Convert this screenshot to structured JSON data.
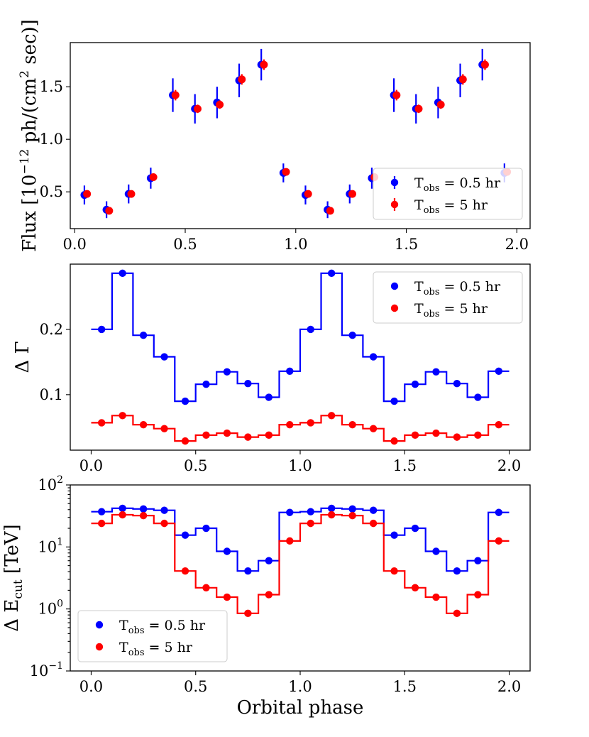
{
  "figure": {
    "xlabel": "Orbital phase",
    "colors": {
      "blue": "#0000ff",
      "red": "#ff0000"
    }
  },
  "chart_data": [
    {
      "type": "scatter",
      "ylabel": "Flux [10^{-12} ph/(cm^2 sec)]",
      "ylabel_parts": {
        "main": "Flux [10",
        "exp1": "−12",
        "mid": " ph/(cm",
        "exp2": "2",
        "end": " sec)]"
      },
      "xlim": [
        -0.02,
        2.06
      ],
      "ylim": [
        0.15,
        1.92
      ],
      "x_ticks": [
        0.0,
        0.5,
        1.0,
        1.5,
        2.0
      ],
      "x_tick_labels": [
        "0.0",
        "0.5",
        "1.0",
        "1.5",
        "2.0"
      ],
      "y_ticks": [
        0.5,
        1.0,
        1.5
      ],
      "y_tick_labels": [
        "0.5",
        "1.0",
        "1.5"
      ],
      "legend": {
        "location": "lower-right",
        "entries": [
          "T_obs = 0.5 hr",
          "T_obs = 5 hr"
        ]
      },
      "series": [
        {
          "name": "T_obs = 0.5 hr",
          "color": "#0000ff",
          "offset": -0.006,
          "x": [
            0.05,
            0.15,
            0.25,
            0.35,
            0.45,
            0.55,
            0.65,
            0.75,
            0.85,
            0.95,
            1.05,
            1.15,
            1.25,
            1.35,
            1.45,
            1.55,
            1.65,
            1.75,
            1.85,
            1.95
          ],
          "y": [
            0.47,
            0.33,
            0.48,
            0.63,
            1.42,
            1.29,
            1.35,
            1.56,
            1.71,
            0.68,
            0.47,
            0.33,
            0.48,
            0.63,
            1.42,
            1.29,
            1.35,
            1.56,
            1.71,
            0.68
          ],
          "yerr": [
            0.09,
            0.08,
            0.09,
            0.1,
            0.16,
            0.14,
            0.15,
            0.16,
            0.15,
            0.09,
            0.09,
            0.08,
            0.09,
            0.1,
            0.16,
            0.14,
            0.15,
            0.16,
            0.15,
            0.09
          ]
        },
        {
          "name": "T_obs = 5 hr",
          "color": "#ff0000",
          "offset": 0.006,
          "x": [
            0.05,
            0.15,
            0.25,
            0.35,
            0.45,
            0.55,
            0.65,
            0.75,
            0.85,
            0.95,
            1.05,
            1.15,
            1.25,
            1.35,
            1.45,
            1.55,
            1.65,
            1.75,
            1.85,
            1.95
          ],
          "y": [
            0.48,
            0.32,
            0.48,
            0.64,
            1.42,
            1.29,
            1.33,
            1.57,
            1.71,
            0.69,
            0.48,
            0.32,
            0.48,
            0.64,
            1.42,
            1.29,
            1.33,
            1.57,
            1.71,
            0.69
          ],
          "yerr": [
            0.03,
            0.03,
            0.03,
            0.03,
            0.05,
            0.04,
            0.04,
            0.05,
            0.05,
            0.03,
            0.03,
            0.03,
            0.03,
            0.03,
            0.05,
            0.04,
            0.04,
            0.05,
            0.05,
            0.03
          ]
        }
      ]
    },
    {
      "type": "line",
      "ylabel": "Δ Γ",
      "xlim": [
        -0.1,
        2.1
      ],
      "ylim": [
        0.015,
        0.3
      ],
      "x_ticks": [
        0.0,
        0.5,
        1.0,
        1.5,
        2.0
      ],
      "x_tick_labels": [
        "0.0",
        "0.5",
        "1.0",
        "1.5",
        "2.0"
      ],
      "y_ticks": [
        0.1,
        0.2
      ],
      "y_tick_labels": [
        "0.1",
        "0.2"
      ],
      "legend": {
        "location": "upper-right",
        "entries": [
          "T_obs = 0.5 hr",
          "T_obs = 5 hr"
        ]
      },
      "series": [
        {
          "name": "T_obs = 0.5 hr",
          "color": "#0000ff",
          "x": [
            0.05,
            0.15,
            0.25,
            0.35,
            0.45,
            0.55,
            0.65,
            0.75,
            0.85,
            0.95,
            1.05,
            1.15,
            1.25,
            1.35,
            1.45,
            1.55,
            1.65,
            1.75,
            1.85,
            1.95
          ],
          "y": [
            0.2,
            0.286,
            0.191,
            0.158,
            0.09,
            0.116,
            0.135,
            0.117,
            0.096,
            0.136,
            0.2,
            0.286,
            0.191,
            0.158,
            0.09,
            0.116,
            0.135,
            0.117,
            0.096,
            0.136
          ]
        },
        {
          "name": "T_obs = 5 hr",
          "color": "#ff0000",
          "x": [
            0.05,
            0.15,
            0.25,
            0.35,
            0.45,
            0.55,
            0.65,
            0.75,
            0.85,
            0.95,
            1.05,
            1.15,
            1.25,
            1.35,
            1.45,
            1.55,
            1.65,
            1.75,
            1.85,
            1.95
          ],
          "y": [
            0.057,
            0.068,
            0.054,
            0.048,
            0.029,
            0.038,
            0.041,
            0.035,
            0.038,
            0.054,
            0.057,
            0.068,
            0.054,
            0.048,
            0.029,
            0.038,
            0.041,
            0.035,
            0.038,
            0.054
          ]
        }
      ]
    },
    {
      "type": "line",
      "yscale": "log",
      "ylabel": "Δ E_cut [TeV]",
      "xlim": [
        -0.1,
        2.1
      ],
      "ylim": [
        0.1,
        100
      ],
      "x_ticks": [
        0.0,
        0.5,
        1.0,
        1.5,
        2.0
      ],
      "x_tick_labels": [
        "0.0",
        "0.5",
        "1.0",
        "1.5",
        "2.0"
      ],
      "y_ticks": [
        0.1,
        1,
        10,
        100
      ],
      "y_tick_labels": [
        [
          "10",
          "−1"
        ],
        [
          "10",
          "0"
        ],
        [
          "10",
          "1"
        ],
        [
          "10",
          "2"
        ]
      ],
      "legend": {
        "location": "lower-left",
        "entries": [
          "T_obs = 0.5 hr",
          "T_obs = 5 hr"
        ]
      },
      "series": [
        {
          "name": "T_obs = 0.5 hr",
          "color": "#0000ff",
          "x": [
            0.05,
            0.15,
            0.25,
            0.35,
            0.45,
            0.55,
            0.65,
            0.75,
            0.85,
            0.95,
            1.05,
            1.15,
            1.25,
            1.35,
            1.45,
            1.55,
            1.65,
            1.75,
            1.85,
            1.95
          ],
          "y": [
            37,
            42,
            41,
            39,
            15.5,
            20,
            8.5,
            4.1,
            6.0,
            36,
            37,
            42,
            41,
            39,
            15.5,
            20,
            8.5,
            4.1,
            6.0,
            36
          ]
        },
        {
          "name": "T_obs = 5 hr",
          "color": "#ff0000",
          "x": [
            0.05,
            0.15,
            0.25,
            0.35,
            0.45,
            0.55,
            0.65,
            0.75,
            0.85,
            0.95,
            1.05,
            1.15,
            1.25,
            1.35,
            1.45,
            1.55,
            1.65,
            1.75,
            1.85,
            1.95
          ],
          "y": [
            24,
            33,
            32,
            24,
            4.1,
            2.2,
            1.55,
            0.85,
            1.7,
            12.5,
            24,
            33,
            32,
            24,
            4.1,
            2.2,
            1.55,
            0.85,
            1.7,
            12.5
          ]
        }
      ]
    }
  ]
}
